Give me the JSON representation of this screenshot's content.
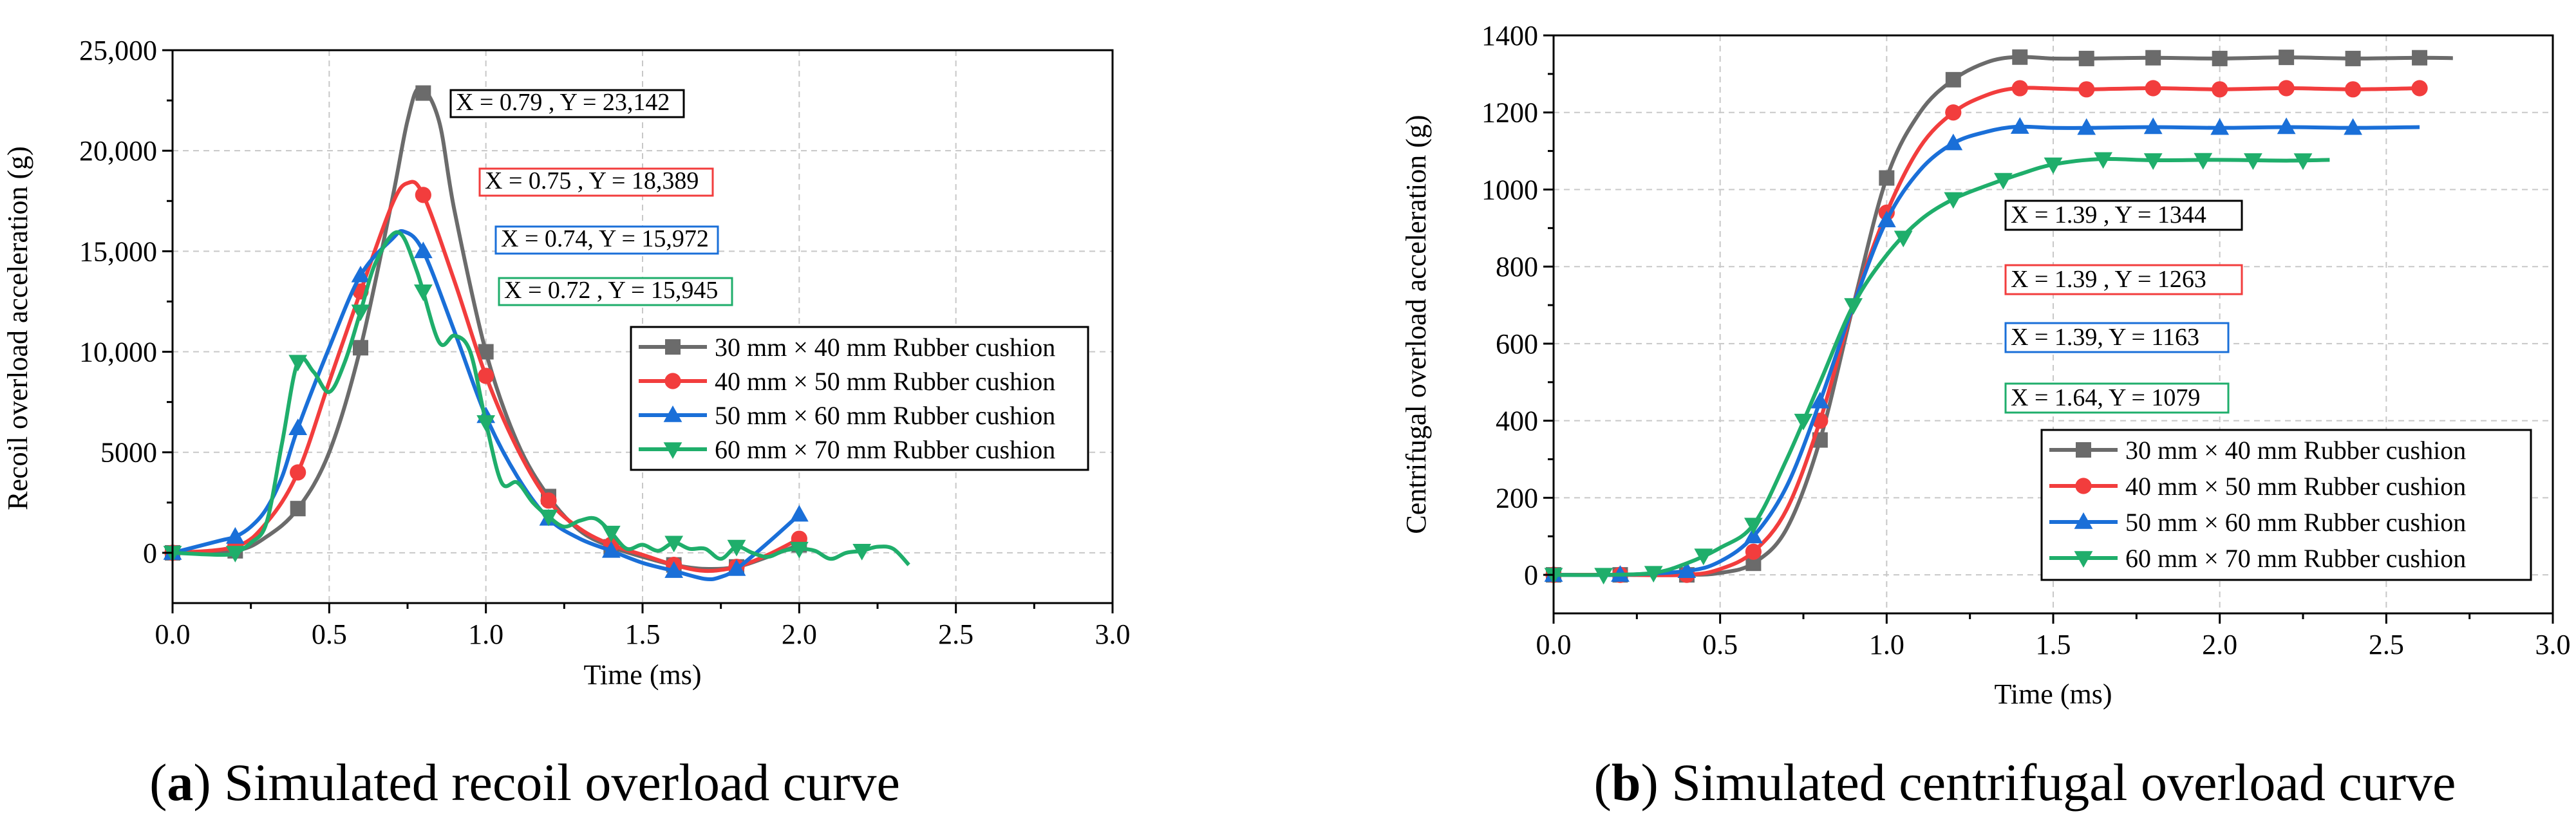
{
  "chart_data": [
    {
      "id": "a",
      "type": "line",
      "caption_letter": "a",
      "caption_text": ") Simulated recoil overload curve",
      "caption_open": "(",
      "xlabel": "Time (ms)",
      "ylabel": "Recoil overload acceleration (g)",
      "xlim": [
        0,
        3
      ],
      "ylim": [
        -2500,
        25000
      ],
      "xticks": [
        0,
        0.5,
        1,
        1.5,
        2,
        2.5,
        3
      ],
      "xtick_labels": [
        "0.0",
        "0.5",
        "1.0",
        "1.5",
        "2.0",
        "2.5",
        "3.0"
      ],
      "yticks": [
        0,
        5000,
        10000,
        15000,
        20000,
        25000
      ],
      "ytick_labels": [
        "0",
        "5000",
        "10,000",
        "15,000",
        "20,000",
        "25,000"
      ],
      "grid": true,
      "legend_position": "center-right",
      "series": [
        {
          "name": "30 mm × 40 mm Rubber cushion",
          "color": "#6b6b6b",
          "marker": "square",
          "x": [
            0,
            0.2,
            0.3,
            0.4,
            0.5,
            0.6,
            0.7,
            0.75,
            0.79,
            0.85,
            0.9,
            1.0,
            1.1,
            1.2,
            1.3,
            1.4,
            1.5,
            1.6,
            1.7,
            1.8,
            1.9,
            2.0
          ],
          "y": [
            0,
            100,
            800,
            2200,
            5000,
            10200,
            17500,
            21500,
            23142,
            21500,
            17000,
            10000,
            5500,
            2800,
            1100,
            300,
            -200,
            -600,
            -800,
            -700,
            -200,
            400
          ],
          "marker_x": [
            0,
            0.2,
            0.4,
            0.6,
            0.8,
            1.0,
            1.2,
            1.4,
            1.6,
            1.8,
            2.0
          ]
        },
        {
          "name": "40 mm × 50 mm Rubber cushion",
          "color": "#f23d3d",
          "marker": "circle",
          "x": [
            0,
            0.2,
            0.3,
            0.4,
            0.5,
            0.6,
            0.7,
            0.75,
            0.8,
            0.9,
            1.0,
            1.1,
            1.2,
            1.3,
            1.4,
            1.5,
            1.6,
            1.7,
            1.8,
            1.9,
            2.0
          ],
          "y": [
            0,
            300,
            1500,
            4000,
            8500,
            13000,
            17300,
            18389,
            17800,
            13500,
            8800,
            5200,
            2600,
            1200,
            400,
            -100,
            -600,
            -900,
            -700,
            -100,
            700
          ],
          "marker_x": [
            0,
            0.2,
            0.4,
            0.6,
            0.8,
            1.0,
            1.2,
            1.4,
            1.6,
            1.8,
            2.0
          ]
        },
        {
          "name": "50 mm × 60 mm Rubber cushion",
          "color": "#1a6fd8",
          "marker": "triangle-up",
          "x": [
            0,
            0.15,
            0.2,
            0.25,
            0.3,
            0.35,
            0.4,
            0.5,
            0.6,
            0.7,
            0.74,
            0.8,
            0.9,
            1.0,
            1.1,
            1.2,
            1.3,
            1.4,
            1.5,
            1.6,
            1.7,
            1.75,
            1.8,
            1.9,
            2.0
          ],
          "y": [
            0,
            600,
            800,
            1300,
            2200,
            3800,
            6200,
            10200,
            13800,
            15600,
            15972,
            15000,
            11000,
            6800,
            3800,
            1700,
            700,
            100,
            -500,
            -900,
            -1300,
            -1200,
            -800,
            500,
            1900
          ],
          "marker_x": [
            0,
            0.2,
            0.4,
            0.6,
            0.8,
            1.0,
            1.2,
            1.4,
            1.6,
            1.8,
            2.0
          ]
        },
        {
          "name": "60 mm × 70 mm Rubber cushion",
          "color": "#1fae6b",
          "marker": "triangle-down",
          "x": [
            0,
            0.15,
            0.2,
            0.25,
            0.3,
            0.35,
            0.4,
            0.45,
            0.5,
            0.55,
            0.6,
            0.65,
            0.72,
            0.78,
            0.85,
            0.9,
            0.95,
            1.0,
            1.05,
            1.1,
            1.15,
            1.2,
            1.25,
            1.3,
            1.35,
            1.4,
            1.45,
            1.5,
            1.55,
            1.6,
            1.65,
            1.7,
            1.75,
            1.8,
            1.85,
            1.9,
            1.95,
            2.0,
            2.05,
            2.1,
            2.15,
            2.2,
            2.25,
            2.3,
            2.35
          ],
          "y": [
            0,
            -100,
            0,
            500,
            1500,
            5500,
            9500,
            9000,
            8000,
            9500,
            12000,
            14500,
            15945,
            14000,
            10500,
            10800,
            10000,
            6500,
            3500,
            3500,
            2500,
            1800,
            1300,
            1600,
            1700,
            1000,
            200,
            400,
            100,
            500,
            200,
            200,
            -300,
            300,
            0,
            -200,
            100,
            200,
            100,
            -300,
            0,
            100,
            300,
            200,
            -600
          ],
          "marker_x": [
            0,
            0.2,
            0.4,
            0.6,
            0.8,
            1.0,
            1.2,
            1.4,
            1.6,
            1.8,
            2.0,
            2.2
          ]
        }
      ],
      "annotations": [
        {
          "text": "X = 0.79 , Y = 23,142",
          "color": "#000000",
          "x": 0.79,
          "y": 23142
        },
        {
          "text": "X = 0.75 , Y = 18,389",
          "color": "#f23d3d",
          "x": 0.75,
          "y": 18389
        },
        {
          "text": "X = 0.74, Y = 15,972",
          "color": "#1a6fd8",
          "x": 0.74,
          "y": 15972
        },
        {
          "text": "X = 0.72 , Y = 15,945",
          "color": "#1fae6b",
          "x": 0.72,
          "y": 15945
        }
      ]
    },
    {
      "id": "b",
      "type": "line",
      "caption_letter": "b",
      "caption_text": ") Simulated centrifugal overload curve",
      "caption_open": "(",
      "xlabel": "Time (ms)",
      "ylabel": "Centrifugal overload acceleration (g)",
      "xlim": [
        0,
        3
      ],
      "ylim": [
        -100,
        1400
      ],
      "xticks": [
        0,
        0.5,
        1,
        1.5,
        2,
        2.5,
        3
      ],
      "xtick_labels": [
        "0.0",
        "0.5",
        "1.0",
        "1.5",
        "2.0",
        "2.5",
        "3.0"
      ],
      "yticks": [
        0,
        200,
        400,
        600,
        800,
        1000,
        1200,
        1400
      ],
      "ytick_labels": [
        "0",
        "200",
        "400",
        "600",
        "800",
        "1000",
        "1200",
        "1400"
      ],
      "grid": true,
      "legend_position": "bottom-right",
      "series": [
        {
          "name": "30 mm × 40 mm Rubber cushion",
          "color": "#6b6b6b",
          "marker": "square",
          "x": [
            0,
            0.2,
            0.4,
            0.5,
            0.6,
            0.7,
            0.8,
            0.9,
            1.0,
            1.1,
            1.2,
            1.3,
            1.39,
            1.5,
            1.6,
            1.8,
            2.0,
            2.2,
            2.4,
            2.6,
            2.7
          ],
          "y": [
            0,
            0,
            0,
            5,
            30,
            120,
            350,
            700,
            1030,
            1200,
            1285,
            1330,
            1344,
            1340,
            1340,
            1342,
            1340,
            1343,
            1340,
            1342,
            1341
          ],
          "marker_x": [
            0,
            0.2,
            0.4,
            0.6,
            0.8,
            1.0,
            1.2,
            1.4,
            1.6,
            1.8,
            2.0,
            2.2,
            2.4,
            2.6
          ]
        },
        {
          "name": "40 mm × 50 mm Rubber cushion",
          "color": "#f23d3d",
          "marker": "circle",
          "x": [
            0,
            0.2,
            0.4,
            0.5,
            0.6,
            0.7,
            0.8,
            0.9,
            1.0,
            1.1,
            1.2,
            1.3,
            1.39,
            1.5,
            1.6,
            1.8,
            2.0,
            2.2,
            2.4,
            2.6
          ],
          "y": [
            0,
            0,
            0,
            15,
            60,
            170,
            400,
            700,
            940,
            1110,
            1200,
            1245,
            1263,
            1262,
            1260,
            1263,
            1260,
            1263,
            1260,
            1263
          ],
          "marker_x": [
            0,
            0.2,
            0.4,
            0.6,
            0.8,
            1.0,
            1.2,
            1.4,
            1.6,
            1.8,
            2.0,
            2.2,
            2.4,
            2.6
          ]
        },
        {
          "name": "50 mm × 60 mm Rubber cushion",
          "color": "#1a6fd8",
          "marker": "triangle-up",
          "x": [
            0,
            0.2,
            0.4,
            0.5,
            0.6,
            0.7,
            0.8,
            0.9,
            1.0,
            1.1,
            1.2,
            1.3,
            1.39,
            1.5,
            1.6,
            1.8,
            2.0,
            2.2,
            2.4,
            2.6
          ],
          "y": [
            0,
            0,
            10,
            35,
            100,
            230,
            450,
            700,
            920,
            1050,
            1120,
            1150,
            1163,
            1160,
            1160,
            1162,
            1160,
            1162,
            1160,
            1162
          ],
          "marker_x": [
            0,
            0.2,
            0.4,
            0.6,
            0.8,
            1.0,
            1.2,
            1.4,
            1.6,
            1.8,
            2.0,
            2.2,
            2.4
          ]
        },
        {
          "name": "60 mm × 70 mm Rubber cushion",
          "color": "#1fae6b",
          "marker": "triangle-down",
          "x": [
            0,
            0.15,
            0.3,
            0.4,
            0.5,
            0.6,
            0.7,
            0.8,
            0.9,
            1.0,
            1.1,
            1.2,
            1.3,
            1.4,
            1.5,
            1.64,
            1.8,
            2.0,
            2.2,
            2.33
          ],
          "y": [
            0,
            0,
            5,
            30,
            70,
            130,
            300,
            500,
            700,
            830,
            920,
            975,
            1010,
            1040,
            1065,
            1079,
            1076,
            1077,
            1075,
            1077
          ],
          "marker_x": [
            0,
            0.15,
            0.3,
            0.45,
            0.6,
            0.75,
            0.9,
            1.05,
            1.2,
            1.35,
            1.5,
            1.65,
            1.8,
            1.95,
            2.1,
            2.25
          ]
        }
      ],
      "annotations": [
        {
          "text": "X = 1.39 , Y = 1344",
          "color": "#000000",
          "x": 1.39,
          "y": 1344
        },
        {
          "text": "X = 1.39 , Y = 1263",
          "color": "#f23d3d",
          "x": 1.39,
          "y": 1263
        },
        {
          "text": "X = 1.39, Y = 1163",
          "color": "#1a6fd8",
          "x": 1.39,
          "y": 1163
        },
        {
          "text": "X = 1.64, Y = 1079",
          "color": "#1fae6b",
          "x": 1.64,
          "y": 1079
        }
      ]
    }
  ]
}
